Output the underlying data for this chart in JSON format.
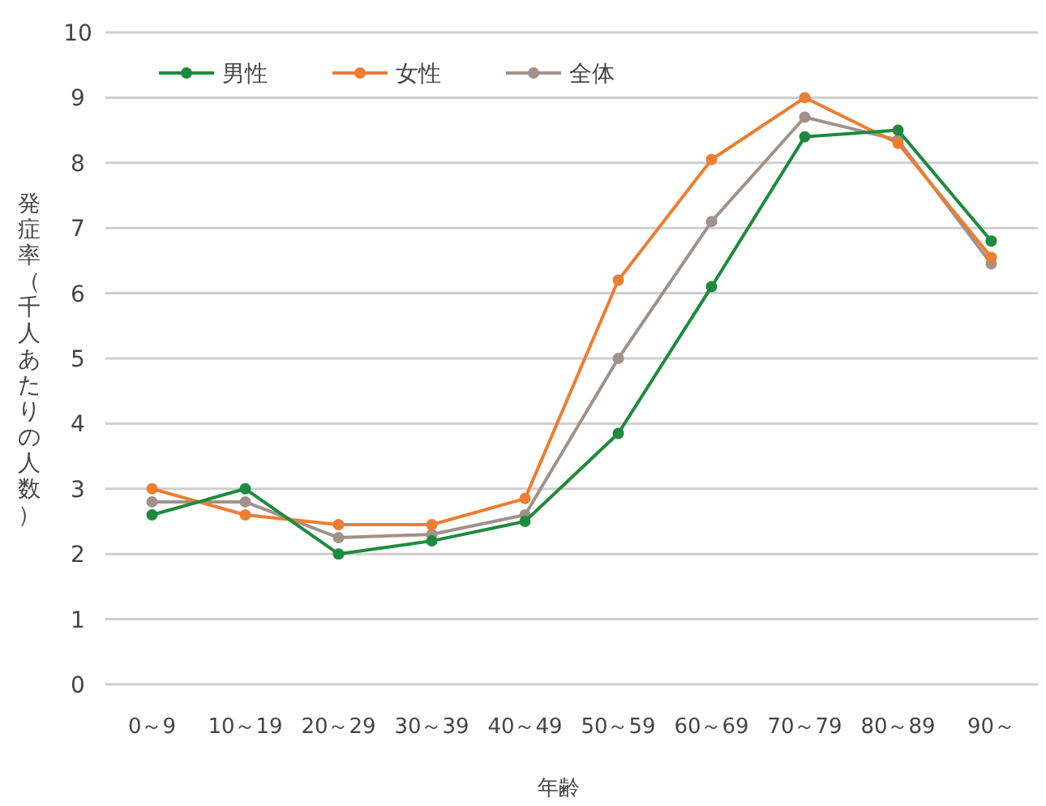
{
  "chart_data": {
    "type": "line",
    "xlabel": "年齢",
    "ylabel": "発症率（千人あたりの人数）",
    "categories": [
      "0～9",
      "10～19",
      "20～29",
      "30～39",
      "40～49",
      "50～59",
      "60～69",
      "70～79",
      "80～89",
      "90～"
    ],
    "series": [
      {
        "name": "男性",
        "color": "#1e8a3e",
        "values": [
          2.6,
          3.0,
          2.0,
          2.2,
          2.5,
          3.85,
          6.1,
          8.4,
          8.5,
          6.8
        ]
      },
      {
        "name": "女性",
        "color": "#ed7d31",
        "values": [
          3.0,
          2.6,
          2.45,
          2.45,
          2.85,
          6.2,
          8.05,
          9.0,
          8.3,
          6.55
        ]
      },
      {
        "name": "全体",
        "color": "#a0928a",
        "values": [
          2.8,
          2.8,
          2.25,
          2.3,
          2.6,
          5.0,
          7.1,
          8.7,
          8.35,
          6.45
        ]
      }
    ],
    "ylim": [
      0,
      10
    ],
    "yticks": [
      0,
      1,
      2,
      3,
      4,
      5,
      6,
      7,
      8,
      9,
      10
    ],
    "grid": "y",
    "legend": "top left",
    "marker": "circle",
    "line_style": "solid"
  }
}
